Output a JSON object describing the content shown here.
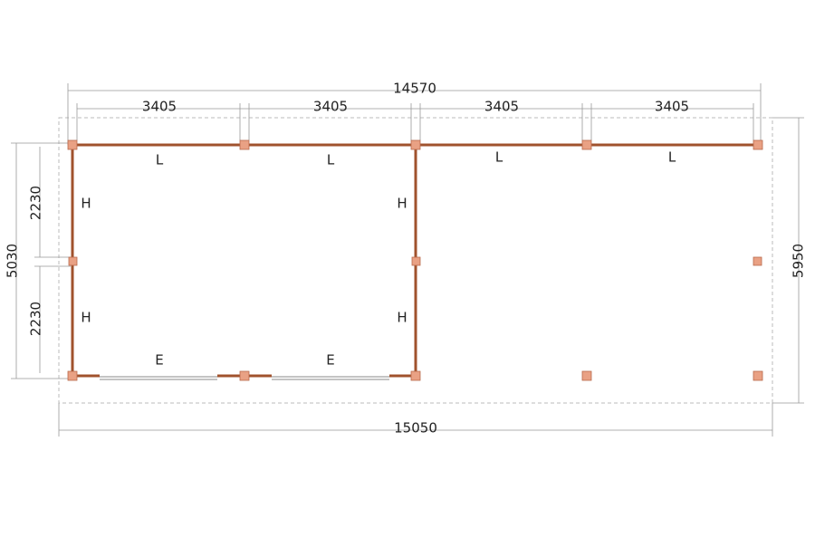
{
  "dimensions": {
    "overall_width": "14570",
    "bays": [
      "3405",
      "3405",
      "3405",
      "3405"
    ],
    "total_width": "15050",
    "left_depth": "5030",
    "left_segments": [
      "2230",
      "2230"
    ],
    "total_depth": "5950"
  },
  "labels": {
    "roof": [
      "L",
      "L",
      "L",
      "L"
    ],
    "walls": [
      "H",
      "H",
      "H",
      "H"
    ],
    "doors": [
      "E",
      "E"
    ]
  }
}
